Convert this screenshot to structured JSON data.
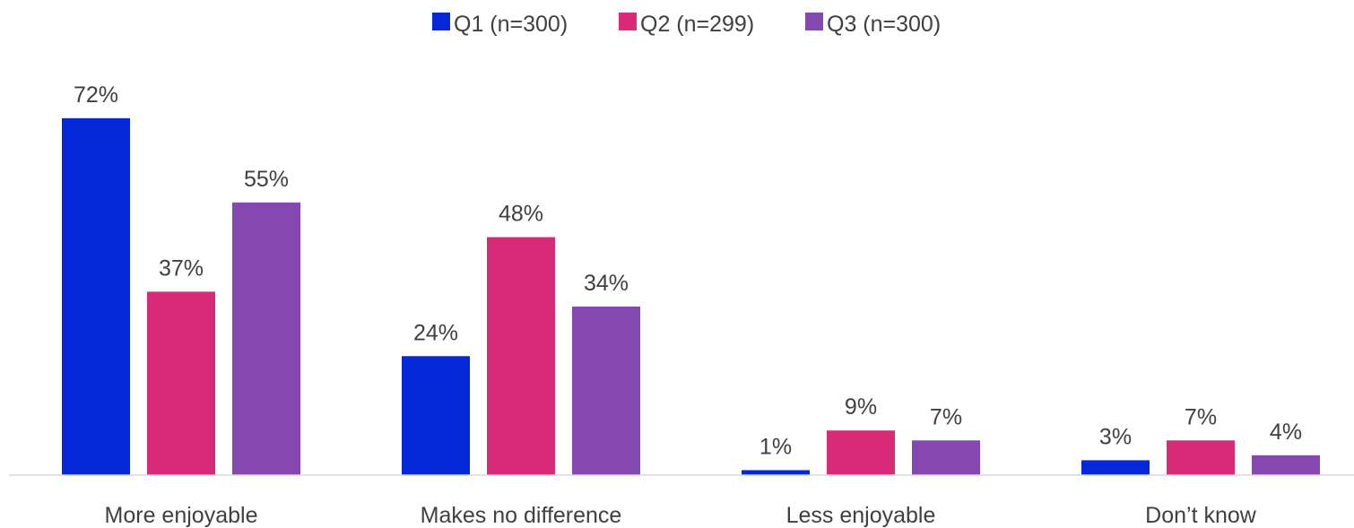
{
  "chart_data": {
    "type": "bar",
    "title": "",
    "xlabel": "",
    "ylabel": "",
    "ylim": [
      0,
      75
    ],
    "grid": false,
    "legend_position": "top-center",
    "categories": [
      "More enjoyable",
      "Makes no difference",
      "Less enjoyable",
      "Don’t know"
    ],
    "series": [
      {
        "name": "Q1 (n=300)",
        "color": "#0529D9",
        "values": [
          72,
          24,
          1,
          3
        ],
        "labels": [
          "72%",
          "24%",
          "1%",
          "3%"
        ]
      },
      {
        "name": "Q2 (n=299)",
        "color": "#D92A78",
        "values": [
          37,
          48,
          9,
          7
        ],
        "labels": [
          "37%",
          "48%",
          "9%",
          "7%"
        ]
      },
      {
        "name": "Q3 (n=300)",
        "color": "#8547B0",
        "values": [
          55,
          34,
          7,
          4
        ],
        "labels": [
          "55%",
          "34%",
          "7%",
          "4%"
        ]
      }
    ]
  }
}
